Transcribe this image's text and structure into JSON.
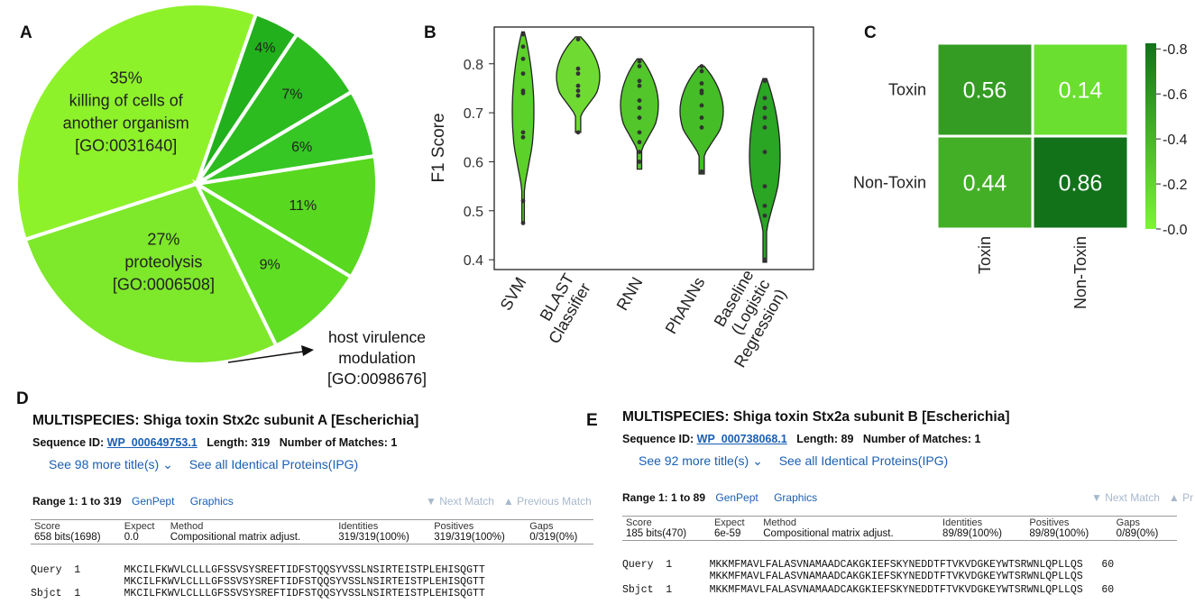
{
  "panels": {
    "a": "A",
    "b": "B",
    "c": "C",
    "d": "D",
    "e": "E"
  },
  "chart_data": [
    {
      "type": "pie",
      "panel": "A",
      "slices": [
        {
          "percent": "35%",
          "value": 35,
          "label": [
            "killing of cells of",
            "another organism",
            "[GO:0031640]"
          ],
          "color": "#8ef22a"
        },
        {
          "percent": "4%",
          "value": 4,
          "label": [],
          "color": "#22b01c"
        },
        {
          "percent": "7%",
          "value": 7,
          "label": [],
          "color": "#2cbc1f"
        },
        {
          "percent": "6%",
          "value": 6,
          "label": [],
          "color": "#36c724"
        },
        {
          "percent": "11%",
          "value": 11,
          "label": [],
          "color": "#58d81f"
        },
        {
          "percent": "9%",
          "value": 9,
          "label": [],
          "color": "#5fde23"
        },
        {
          "percent": "27%",
          "value": 27,
          "label": [
            "proteolysis",
            "[GO:0006508]"
          ],
          "color": "#7ee82b"
        }
      ],
      "annotation": [
        "host virulence",
        "modulation",
        "[GO:0098676]"
      ]
    },
    {
      "type": "violin",
      "panel": "B",
      "ylabel": "F1 Score",
      "ylim": [
        0.38,
        0.875
      ],
      "yticks": [
        "0.4",
        "0.5",
        "0.6",
        "0.7",
        "0.8"
      ],
      "ytick_values": [
        0.4,
        0.5,
        0.6,
        0.7,
        0.8
      ],
      "series": [
        {
          "name": "SVM",
          "label": [
            "SVM"
          ],
          "color": "#5bd12a",
          "min": 0.475,
          "max": 0.865,
          "points": [
            0.86,
            0.835,
            0.81,
            0.78,
            0.745,
            0.74,
            0.66,
            0.65,
            0.52,
            0.475
          ]
        },
        {
          "name": "BLAST Classifier",
          "label": [
            "BLAST",
            "Classifier"
          ],
          "color": "#6fdb32",
          "min": 0.66,
          "max": 0.855,
          "points": [
            0.85,
            0.79,
            0.78,
            0.755,
            0.745,
            0.735,
            0.66
          ]
        },
        {
          "name": "RNN",
          "label": [
            "RNN"
          ],
          "color": "#52c62a",
          "min": 0.585,
          "max": 0.81,
          "points": [
            0.805,
            0.795,
            0.765,
            0.755,
            0.725,
            0.71,
            0.69,
            0.66,
            0.64,
            0.62,
            0.6
          ]
        },
        {
          "name": "PhANNs",
          "label": [
            "PhANNs"
          ],
          "color": "#45bd27",
          "min": 0.575,
          "max": 0.795,
          "points": [
            0.795,
            0.785,
            0.76,
            0.745,
            0.74,
            0.715,
            0.69,
            0.67,
            0.58
          ]
        },
        {
          "name": "Baseline (Logistic Regression)",
          "label": [
            "Baseline",
            "(Logistic",
            "Regression)"
          ],
          "color": "#2aa524",
          "min": 0.395,
          "max": 0.77,
          "points": [
            0.765,
            0.73,
            0.71,
            0.69,
            0.67,
            0.62,
            0.55,
            0.51,
            0.49,
            0.4
          ]
        }
      ]
    },
    {
      "type": "heatmap",
      "panel": "C",
      "rows": [
        "Toxin",
        "Non-Toxin"
      ],
      "cols": [
        "Toxin",
        "Non-Toxin"
      ],
      "values": [
        [
          0.56,
          0.14
        ],
        [
          0.44,
          0.86
        ]
      ],
      "cell_labels": [
        [
          "0.56",
          "0.14"
        ],
        [
          "0.44",
          "0.86"
        ]
      ],
      "colorbar": {
        "ticks": [
          "0.8",
          "0.6",
          "0.4",
          "0.2",
          "0.0"
        ],
        "tick_values": [
          0.8,
          0.6,
          0.4,
          0.2,
          0.0
        ],
        "range": [
          0,
          0.825
        ],
        "low_color": "#7cf535",
        "high_color": "#12721a"
      }
    }
  ],
  "blast_d": {
    "title": "MULTISPECIES: Shiga toxin Stx2c subunit A [Escherichia]",
    "seqid_label": "Sequence ID:",
    "seqid": "WP_000649753.1",
    "length_label": "Length:",
    "length": "319",
    "matches_label": "Number of Matches:",
    "matches": "1",
    "more_titles": "See 98 more title(s)",
    "identical": "See all Identical Proteins(IPG)",
    "range": "Range 1: 1 to 319",
    "genpept": "GenPept",
    "graphics": "Graphics",
    "next_match": "▼ Next Match",
    "prev_match": "▲ Previous Match",
    "headers": [
      "Score",
      "Expect",
      "Method",
      "Identities",
      "Positives",
      "Gaps"
    ],
    "values": [
      "658 bits(1698)",
      "0.0",
      "Compositional matrix adjust.",
      "319/319(100%)",
      "319/319(100%)",
      "0/319(0%)"
    ],
    "query": "Query  1       MKCILFKWVLCLLLGFSSVSYSREFTIDFSTQQSYVSSLNSIRTEISTPLEHISQGTT",
    "mid": "               MKCILFKWVLCLLLGFSSVSYSREFTIDFSTQQSYVSSLNSIRTEISTPLEHISQGTT",
    "sbjct": "Sbjct  1       MKCILFKWVLCLLLGFSSVSYSREFTIDFSTQQSYVSSLNSIRTEISTPLEHISQGTT"
  },
  "blast_e": {
    "title": "MULTISPECIES: Shiga toxin Stx2a subunit B [Escherichia]",
    "seqid_label": "Sequence ID:",
    "seqid": "WP_000738068.1",
    "length_label": "Length:",
    "length": "89",
    "matches_label": "Number of Matches:",
    "matches": "1",
    "more_titles": "See 92 more title(s)",
    "identical": "See all Identical Proteins(IPG)",
    "range": "Range 1: 1 to 89",
    "genpept": "GenPept",
    "graphics": "Graphics",
    "next_match": "▼ Next Match",
    "prev_match": "▲ Pr",
    "headers": [
      "Score",
      "Expect",
      "Method",
      "Identities",
      "Positives",
      "Gaps"
    ],
    "values": [
      "185 bits(470)",
      "6e-59",
      "Compositional matrix adjust.",
      "89/89(100%)",
      "89/89(100%)",
      "0/89(0%)"
    ],
    "query": "Query  1      MKKMFMAVLFALASVNAMAADCAKGKIEFSKYNEDDTFTVKVDGKEYWTSRWNLQPLLQS   60",
    "mid": "              MKKMFMAVLFALASVNAMAADCAKGKIEFSKYNEDDTFTVKVDGKEYWTSRWNLQPLLQS",
    "sbjct": "Sbjct  1      MKKMFMAVLFALASVNAMAADCAKGKIEFSKYNEDDTFTVKVDGKEYWTSRWNLQPLLQS   60"
  }
}
